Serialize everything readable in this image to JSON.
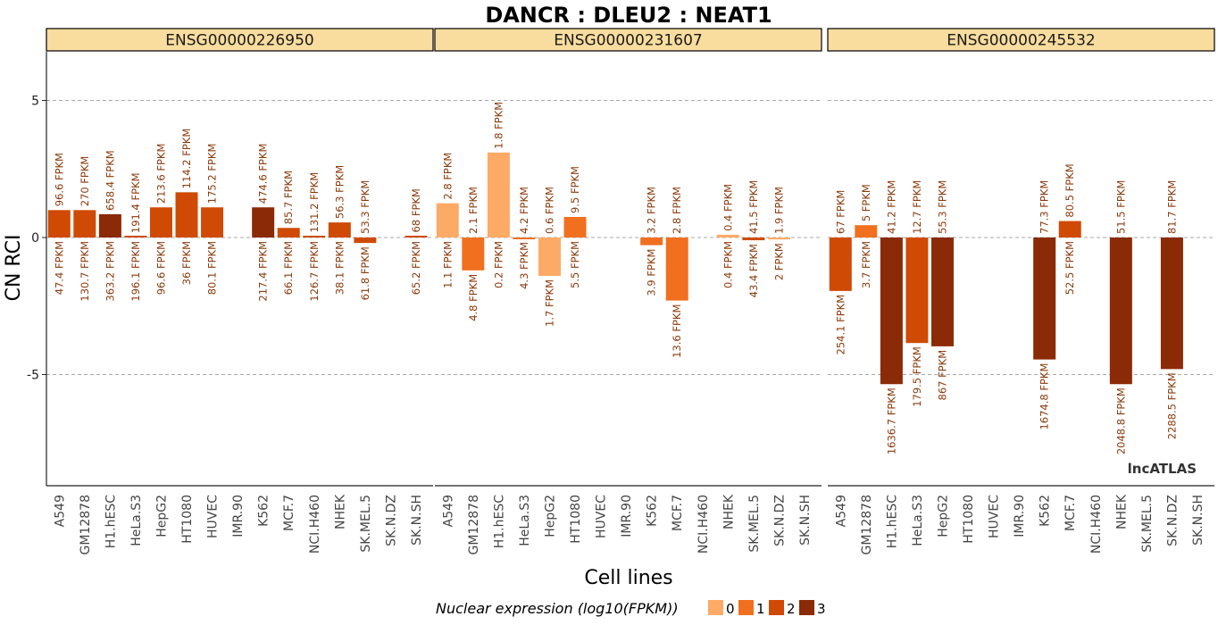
{
  "chart_data": {
    "type": "bar",
    "title": "DANCR : DLEU2 : NEAT1",
    "xlabel": "Cell lines",
    "ylabel": "CN RCI",
    "ylim": [
      -9,
      7
    ],
    "yticks": [
      5,
      0,
      -5
    ],
    "grid": "horizontal dashed",
    "watermark": "lncATLAS",
    "categories": [
      "A549",
      "GM12878",
      "H1.hESC",
      "HeLa.S3",
      "HepG2",
      "HT1080",
      "HUVEC",
      "IMR.90",
      "K562",
      "MCF.7",
      "NCI.H460",
      "NHEK",
      "SK.MEL.5",
      "SK.N.DZ",
      "SK.N.SH"
    ],
    "legend": {
      "title": "Nuclear expression (log10(FPKM))",
      "position": "bottom",
      "items": [
        {
          "label": "0",
          "color": "#fdaa66"
        },
        {
          "label": "1",
          "color": "#f07020"
        },
        {
          "label": "2",
          "color": "#cf4a05"
        },
        {
          "label": "3",
          "color": "#8b2a06"
        }
      ]
    },
    "panels": [
      {
        "name": "ENSG00000226950",
        "bars": [
          {
            "cell": "A549",
            "value": 1.0,
            "level": 2,
            "top_label": "96.6 FPKM",
            "bottom_label": "47.4 FPKM"
          },
          {
            "cell": "GM12878",
            "value": 1.0,
            "level": 2,
            "top_label": "270 FPKM",
            "bottom_label": "130.7 FPKM"
          },
          {
            "cell": "H1.hESC",
            "value": 0.85,
            "level": 3,
            "top_label": "658.4 FPKM",
            "bottom_label": "363.2 FPKM"
          },
          {
            "cell": "HeLa.S3",
            "value": 0.03,
            "level": 2,
            "top_label": "191.4 FPKM",
            "bottom_label": "196.1 FPKM"
          },
          {
            "cell": "HepG2",
            "value": 1.1,
            "level": 2,
            "top_label": "213.6 FPKM",
            "bottom_label": "96.6 FPKM"
          },
          {
            "cell": "HT1080",
            "value": 1.65,
            "level": 2,
            "top_label": "114.2 FPKM",
            "bottom_label": "36 FPKM"
          },
          {
            "cell": "HUVEC",
            "value": 1.1,
            "level": 2,
            "top_label": "175.2 FPKM",
            "bottom_label": "80.1 FPKM"
          },
          {
            "cell": "IMR.90",
            "value": null,
            "level": null,
            "top_label": "",
            "bottom_label": ""
          },
          {
            "cell": "K562",
            "value": 1.1,
            "level": 3,
            "top_label": "474.6 FPKM",
            "bottom_label": "217.4 FPKM"
          },
          {
            "cell": "MCF.7",
            "value": 0.35,
            "level": 2,
            "top_label": "85.7 FPKM",
            "bottom_label": "66.1 FPKM"
          },
          {
            "cell": "NCI.H460",
            "value": 0.05,
            "level": 2,
            "top_label": "131.2 FPKM",
            "bottom_label": "126.7 FPKM"
          },
          {
            "cell": "NHEK",
            "value": 0.55,
            "level": 2,
            "top_label": "56.3 FPKM",
            "bottom_label": "38.1 FPKM"
          },
          {
            "cell": "SK.MEL.5",
            "value": -0.2,
            "level": 2,
            "top_label": "53.3 FPKM",
            "bottom_label": "61.8 FPKM"
          },
          {
            "cell": "SK.N.DZ",
            "value": null,
            "level": null,
            "top_label": "",
            "bottom_label": ""
          },
          {
            "cell": "SK.N.SH",
            "value": 0.05,
            "level": 2,
            "top_label": "68 FPKM",
            "bottom_label": "65.2 FPKM"
          }
        ]
      },
      {
        "name": "ENSG00000231607",
        "bars": [
          {
            "cell": "A549",
            "value": 1.25,
            "level": 0,
            "top_label": "2.8 FPKM",
            "bottom_label": "1.1 FPKM"
          },
          {
            "cell": "GM12878",
            "value": -1.2,
            "level": 1,
            "top_label": "2.1 FPKM",
            "bottom_label": "4.8 FPKM"
          },
          {
            "cell": "H1.hESC",
            "value": 3.1,
            "level": 0,
            "top_label": "1.8 FPKM",
            "bottom_label": "0.2 FPKM"
          },
          {
            "cell": "HeLa.S3",
            "value": -0.03,
            "level": 1,
            "top_label": "4.2 FPKM",
            "bottom_label": "4.3 FPKM"
          },
          {
            "cell": "HepG2",
            "value": -1.4,
            "level": 0,
            "top_label": "0.6 FPKM",
            "bottom_label": "1.7 FPKM"
          },
          {
            "cell": "HT1080",
            "value": 0.75,
            "level": 1,
            "top_label": "9.5 FPKM",
            "bottom_label": "5.5 FPKM"
          },
          {
            "cell": "HUVEC",
            "value": null,
            "level": null,
            "top_label": "",
            "bottom_label": ""
          },
          {
            "cell": "IMR.90",
            "value": null,
            "level": null,
            "top_label": "",
            "bottom_label": ""
          },
          {
            "cell": "K562",
            "value": -0.28,
            "level": 1,
            "top_label": "3.2 FPKM",
            "bottom_label": "3.9 FPKM"
          },
          {
            "cell": "MCF.7",
            "value": -2.3,
            "level": 1,
            "top_label": "2.8 FPKM",
            "bottom_label": "13.6 FPKM"
          },
          {
            "cell": "NCI.H460",
            "value": null,
            "level": null,
            "top_label": "",
            "bottom_label": ""
          },
          {
            "cell": "NHEK",
            "value": 0.1,
            "level": 0,
            "top_label": "0.4 FPKM",
            "bottom_label": "0.4 FPKM"
          },
          {
            "cell": "SK.MEL.5",
            "value": -0.1,
            "level": 2,
            "top_label": "41.5 FPKM",
            "bottom_label": "43.4 FPKM"
          },
          {
            "cell": "SK.N.DZ",
            "value": -0.07,
            "level": 0,
            "top_label": "1.9 FPKM",
            "bottom_label": "2 FPKM"
          },
          {
            "cell": "SK.N.SH",
            "value": null,
            "level": null,
            "top_label": "",
            "bottom_label": ""
          }
        ]
      },
      {
        "name": "ENSG00000245532",
        "bars": [
          {
            "cell": "A549",
            "value": -1.95,
            "level": 2,
            "top_label": "67 FPKM",
            "bottom_label": "254.1 FPKM"
          },
          {
            "cell": "GM12878",
            "value": 0.45,
            "level": 1,
            "top_label": "5 FPKM",
            "bottom_label": "3.7 FPKM"
          },
          {
            "cell": "H1.hESC",
            "value": -5.35,
            "level": 3,
            "top_label": "41.2 FPKM",
            "bottom_label": "1636.7 FPKM"
          },
          {
            "cell": "HeLa.S3",
            "value": -3.85,
            "level": 2,
            "top_label": "12.7 FPKM",
            "bottom_label": "179.5 FPKM"
          },
          {
            "cell": "HepG2",
            "value": -3.97,
            "level": 3,
            "top_label": "55.3 FPKM",
            "bottom_label": "867 FPKM"
          },
          {
            "cell": "HT1080",
            "value": null,
            "level": null,
            "top_label": "",
            "bottom_label": ""
          },
          {
            "cell": "HUVEC",
            "value": null,
            "level": null,
            "top_label": "",
            "bottom_label": ""
          },
          {
            "cell": "IMR.90",
            "value": null,
            "level": null,
            "top_label": "",
            "bottom_label": ""
          },
          {
            "cell": "K562",
            "value": -4.45,
            "level": 3,
            "top_label": "77.3 FPKM",
            "bottom_label": "1674.8 FPKM"
          },
          {
            "cell": "MCF.7",
            "value": 0.6,
            "level": 2,
            "top_label": "80.5 FPKM",
            "bottom_label": "52.5 FPKM"
          },
          {
            "cell": "NCI.H460",
            "value": null,
            "level": null,
            "top_label": "",
            "bottom_label": ""
          },
          {
            "cell": "NHEK",
            "value": -5.35,
            "level": 3,
            "top_label": "51.5 FPKM",
            "bottom_label": "2048.8 FPKM"
          },
          {
            "cell": "SK.MEL.5",
            "value": null,
            "level": null,
            "top_label": "",
            "bottom_label": ""
          },
          {
            "cell": "SK.N.DZ",
            "value": -4.8,
            "level": 3,
            "top_label": "81.7 FPKM",
            "bottom_label": "2288.5 FPKM"
          },
          {
            "cell": "SK.N.SH",
            "value": null,
            "level": null,
            "top_label": "",
            "bottom_label": ""
          }
        ]
      }
    ]
  }
}
